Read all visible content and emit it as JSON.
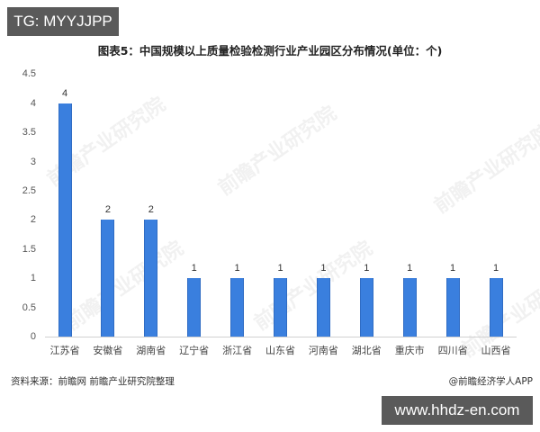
{
  "badges": {
    "top_left": "TG: MYYJJPP",
    "bottom_right": "www.hhdz-en.com"
  },
  "watermark": {
    "text": "前瞻产业研究院"
  },
  "footer": {
    "source": "资料来源：前瞻网 前瞻产业研究院整理",
    "credit": "@前瞻经济学人APP"
  },
  "chart_data": {
    "type": "bar",
    "title": "图表5：中国规模以上质量检验检测行业产业园区分布情况(单位：个)",
    "xlabel": "",
    "ylabel": "",
    "ylim": [
      0,
      4.5
    ],
    "yticks": [
      "0",
      "0.5",
      "1",
      "1.5",
      "2",
      "2.5",
      "3",
      "3.5",
      "4",
      "4.5"
    ],
    "grid": false,
    "legend": null,
    "bar_color": "#3a7fde",
    "categories": [
      "江苏省",
      "安徽省",
      "湖南省",
      "辽宁省",
      "浙江省",
      "山东省",
      "河南省",
      "湖北省",
      "重庆市",
      "四川省",
      "山西省"
    ],
    "values": [
      4,
      2,
      2,
      1,
      1,
      1,
      1,
      1,
      1,
      1,
      1
    ],
    "data_labels": [
      "4",
      "2",
      "2",
      "1",
      "1",
      "1",
      "1",
      "1",
      "1",
      "1",
      "1"
    ]
  }
}
